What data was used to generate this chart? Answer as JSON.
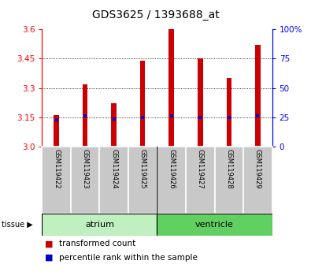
{
  "title": "GDS3625 / 1393688_at",
  "samples": [
    "GSM119422",
    "GSM119423",
    "GSM119424",
    "GSM119425",
    "GSM119426",
    "GSM119427",
    "GSM119428",
    "GSM119429"
  ],
  "red_values": [
    3.16,
    3.32,
    3.22,
    3.44,
    3.6,
    3.45,
    3.35,
    3.52
  ],
  "blue_values": [
    3.135,
    3.155,
    3.14,
    3.149,
    3.157,
    3.15,
    3.148,
    3.157
  ],
  "y_min": 3.0,
  "y_max": 3.6,
  "yticks_left": [
    3.0,
    3.15,
    3.3,
    3.45,
    3.6
  ],
  "yticks_right_vals": [
    0,
    25,
    50,
    75,
    100
  ],
  "yticks_right_labels": [
    "0",
    "25",
    "50",
    "75",
    "100%"
  ],
  "gridlines": [
    3.15,
    3.3,
    3.45
  ],
  "bar_color": "#cc0000",
  "blue_color": "#0000cc",
  "bar_width": 0.18,
  "title_fontsize": 10,
  "tick_fontsize": 7.5,
  "sample_fontsize": 6.0,
  "legend_fontsize": 7.5,
  "legend_items": [
    "transformed count",
    "percentile rank within the sample"
  ],
  "xticklabel_bg": "#c8c8c8",
  "atrium_color": "#c0f0c0",
  "ventricle_color": "#60d060",
  "atrium_samples": [
    0,
    1,
    2,
    3
  ],
  "ventricle_samples": [
    4,
    5,
    6,
    7
  ]
}
